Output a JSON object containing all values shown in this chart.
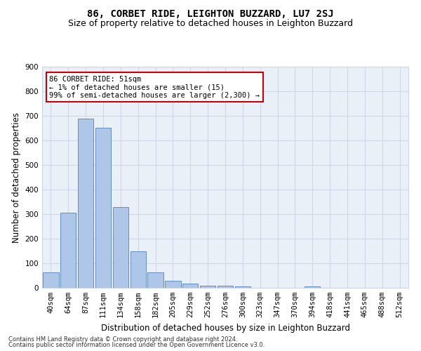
{
  "title": "86, CORBET RIDE, LEIGHTON BUZZARD, LU7 2SJ",
  "subtitle": "Size of property relative to detached houses in Leighton Buzzard",
  "xlabel": "Distribution of detached houses by size in Leighton Buzzard",
  "ylabel": "Number of detached properties",
  "bar_values": [
    62,
    307,
    688,
    652,
    330,
    148,
    62,
    30,
    17,
    10,
    8,
    7,
    0,
    0,
    0,
    7,
    0,
    0,
    0,
    0,
    0
  ],
  "bar_labels": [
    "40sqm",
    "64sqm",
    "87sqm",
    "111sqm",
    "134sqm",
    "158sqm",
    "182sqm",
    "205sqm",
    "229sqm",
    "252sqm",
    "276sqm",
    "300sqm",
    "323sqm",
    "347sqm",
    "370sqm",
    "394sqm",
    "418sqm",
    "441sqm",
    "465sqm",
    "488sqm",
    "512sqm"
  ],
  "bar_color": "#aec6e8",
  "bar_edge_color": "#4f81bd",
  "annotation_text": "86 CORBET RIDE: 51sqm\n← 1% of detached houses are smaller (15)\n99% of semi-detached houses are larger (2,300) →",
  "annotation_box_color": "#ffffff",
  "annotation_box_edge_color": "#cc0000",
  "ylim": [
    0,
    900
  ],
  "yticks": [
    0,
    100,
    200,
    300,
    400,
    500,
    600,
    700,
    800,
    900
  ],
  "grid_color": "#d0d8e8",
  "background_color": "#eaf0f8",
  "footer_line1": "Contains HM Land Registry data © Crown copyright and database right 2024.",
  "footer_line2": "Contains public sector information licensed under the Open Government Licence v3.0.",
  "title_fontsize": 10,
  "subtitle_fontsize": 9,
  "xlabel_fontsize": 8.5,
  "ylabel_fontsize": 8.5,
  "tick_fontsize": 7.5,
  "annotation_fontsize": 7.5,
  "footer_fontsize": 6
}
